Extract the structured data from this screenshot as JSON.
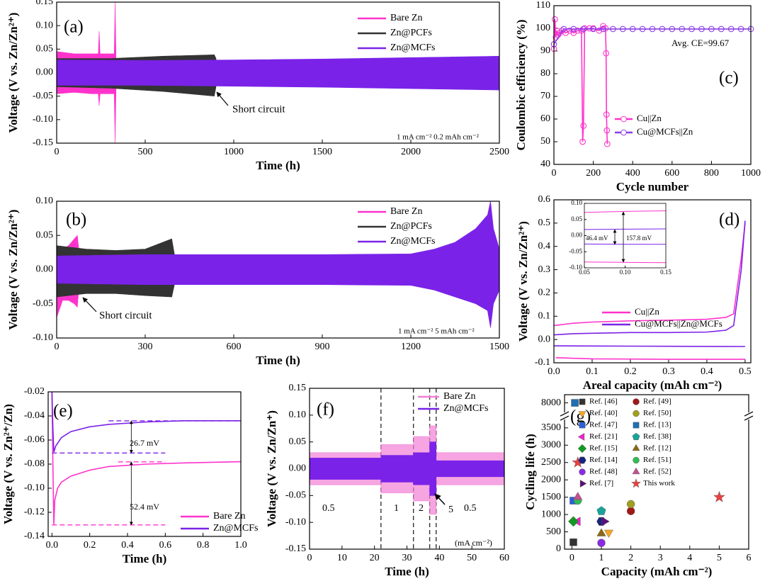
{
  "chart_data": [
    {
      "type": "band",
      "panel_label": "(a)",
      "xlabel": "Time (h)",
      "ylabel": "Voltage (V vs. Zn/Zn²⁺)",
      "xlim": [
        0,
        2500
      ],
      "xticks": [
        0,
        500,
        1000,
        1500,
        2000,
        2500
      ],
      "ylim": [
        -0.15,
        0.15
      ],
      "yticks": [
        -0.15,
        {
          "value": -0.1,
          "label": "-0.10"
        },
        -0.05,
        {
          "value": 0,
          "label": "0.00"
        },
        0.05,
        {
          "value": 0.1,
          "label": "0.10"
        },
        0.15
      ],
      "series": [
        {
          "name": "Bare Zn",
          "color": "#ff33cc",
          "x": [
            0,
            100,
            200,
            235,
            240,
            245,
            300,
            325,
            330,
            335
          ],
          "values": [
            0.045,
            0.04,
            0.04,
            0.04,
            0.088,
            0.04,
            0.04,
            0.04,
            0.15,
            0.04
          ],
          "lower": [
            -0.045,
            -0.042,
            -0.045,
            -0.045,
            -0.07,
            -0.045,
            -0.045,
            -0.045,
            -0.15,
            -0.04
          ]
        },
        {
          "name": "Zn@PCFs",
          "color": "#333333",
          "x": [
            0,
            300,
            600,
            890,
            900
          ],
          "values": [
            0.03,
            0.03,
            0.035,
            0.038,
            0.03
          ],
          "lower": [
            -0.03,
            -0.033,
            -0.04,
            -0.05,
            -0.03
          ]
        },
        {
          "name": "Zn@MCFs",
          "color": "#7a22e8",
          "x": [
            0,
            500,
            1000,
            1500,
            2000,
            2500
          ],
          "values": [
            0.027,
            0.026,
            0.027,
            0.029,
            0.032,
            0.035
          ],
          "lower": [
            -0.027,
            -0.027,
            -0.029,
            -0.031,
            -0.034,
            -0.037
          ]
        }
      ],
      "annotations": [
        "Short circuit",
        "1 mA cm⁻² 0.2 mAh cm⁻²"
      ]
    },
    {
      "type": "band",
      "panel_label": "(b)",
      "xlabel": "Time (h)",
      "ylabel": "Voltage (V vs. Zn/Zn²⁺)",
      "xlim": [
        0,
        1500
      ],
      "xticks": [
        0,
        300,
        600,
        900,
        1200,
        1500
      ],
      "ylim": [
        -0.1,
        0.1
      ],
      "yticks": [
        {
          "value": -0.1,
          "label": "-0.10"
        },
        -0.05,
        {
          "value": 0,
          "label": "0.00"
        },
        0.05,
        {
          "value": 0.1,
          "label": "0.10"
        }
      ],
      "series": [
        {
          "name": "Bare Zn",
          "color": "#ff33cc",
          "x": [
            0,
            20,
            40,
            60,
            70,
            75
          ],
          "values": [
            0.035,
            0.03,
            0.035,
            0.045,
            0.05,
            0.03
          ],
          "lower": [
            -0.07,
            -0.045,
            -0.045,
            -0.05,
            -0.055,
            -0.03
          ]
        },
        {
          "name": "Zn@PCFs",
          "color": "#333333",
          "x": [
            0,
            100,
            200,
            300,
            390,
            400
          ],
          "values": [
            0.035,
            0.03,
            0.028,
            0.03,
            0.045,
            0.02
          ],
          "lower": [
            -0.04,
            -0.035,
            -0.035,
            -0.038,
            -0.04,
            -0.02
          ]
        },
        {
          "name": "Zn@MCFs",
          "color": "#7a22e8",
          "x": [
            0,
            300,
            600,
            900,
            1200,
            1280,
            1350,
            1420,
            1460,
            1470,
            1480,
            1500
          ],
          "values": [
            0.02,
            0.022,
            0.022,
            0.022,
            0.023,
            0.03,
            0.04,
            0.06,
            0.08,
            0.1,
            0.06,
            0.03
          ],
          "lower": [
            -0.02,
            -0.022,
            -0.022,
            -0.022,
            -0.023,
            -0.03,
            -0.04,
            -0.05,
            -0.06,
            -0.085,
            -0.05,
            -0.03
          ]
        }
      ],
      "annotations": [
        "Short circuit",
        "1 mA cm⁻² 5 mAh cm⁻²"
      ]
    },
    {
      "type": "line",
      "panel_label": "(c)",
      "xlabel": "Cycle number",
      "ylabel": "Coulombic efficiency (%)",
      "markers": true,
      "xlim": [
        0,
        1000
      ],
      "xticks": [
        0,
        200,
        400,
        600,
        800,
        1000
      ],
      "ylim": [
        40,
        110
      ],
      "yticks": [
        40,
        50,
        60,
        70,
        80,
        90,
        100,
        110
      ],
      "series": [
        {
          "name": "Cu||Zn",
          "color": "#ff33cc",
          "x": [
            0,
            5,
            10,
            15,
            20,
            30,
            40,
            60,
            80,
            100,
            120,
            140,
            146,
            150,
            156,
            180,
            200,
            230,
            250,
            262,
            265,
            267,
            269,
            271
          ],
          "values": [
            91,
            104,
            96,
            99,
            97,
            98,
            99,
            98,
            99,
            98,
            99,
            99,
            50,
            57,
            100,
            100,
            100,
            99,
            101,
            100,
            89,
            62,
            55,
            49
          ]
        },
        {
          "name": "Cu@MCFs||Zn",
          "color": "#8c3ee8",
          "x": [
            0,
            50,
            100,
            150,
            200,
            250,
            300,
            350,
            400,
            450,
            500,
            550,
            600,
            650,
            700,
            750,
            800,
            850,
            900,
            950,
            1000
          ],
          "values": [
            93,
            99.7,
            99.7,
            99.7,
            99.7,
            99.7,
            99.7,
            99.7,
            99.7,
            99.7,
            99.7,
            99.7,
            99.7,
            99.7,
            99.7,
            99.7,
            99.7,
            99.7,
            99.7,
            99.7,
            99.7
          ]
        }
      ],
      "annotations": [
        "Avg. CE=99.67"
      ]
    },
    {
      "type": "line",
      "panel_label": "(d)",
      "xlabel": "Areal capacity (mAh cm⁻²)",
      "ylabel": "Voltage (V vs. Zn/Zn²⁺)",
      "xlim": [
        0,
        0.515
      ],
      "xticks": [
        {
          "value": 0,
          "label": "0.0"
        },
        0.1,
        0.2,
        0.3,
        0.4,
        0.5
      ],
      "ylim": [
        -0.1,
        0.6
      ],
      "yticks": [
        -0.1,
        {
          "value": 0,
          "label": "0.0"
        },
        0.1,
        0.2,
        0.3,
        0.4,
        0.5,
        0.6
      ],
      "series": [
        {
          "name": "Cu||Zn",
          "color": "#ff33cc",
          "x": [
            0,
            0.05,
            0.1,
            0.2,
            0.3,
            0.4,
            0.45,
            0.47,
            0.49,
            0.5,
            0.5,
            0.005,
            0.1,
            0.3,
            0.5
          ],
          "values": [
            0.06,
            0.07,
            0.075,
            0.08,
            0.083,
            0.087,
            0.095,
            0.11,
            0.35,
            0.5,
            null,
            -0.078,
            -0.083,
            -0.085,
            -0.085
          ]
        },
        {
          "name": "Cu@MCFs||Zn@MCFs",
          "color": "#7a22e8",
          "x": [
            0,
            0.05,
            0.1,
            0.2,
            0.3,
            0.4,
            0.45,
            0.47,
            0.49,
            0.5,
            0.5,
            0,
            0.1,
            0.3,
            0.5
          ],
          "values": [
            0.02,
            0.025,
            0.027,
            0.03,
            0.03,
            0.032,
            0.04,
            0.06,
            0.3,
            0.51,
            null,
            -0.027,
            -0.028,
            -0.029,
            -0.03
          ]
        }
      ]
    },
    {
      "type": "line",
      "xlim": [
        0.05,
        0.15
      ],
      "xticks": [
        0.05,
        {
          "value": 0.1,
          "label": "0.10"
        },
        0.15
      ],
      "ylim": [
        -0.1,
        0.1
      ],
      "yticks": [
        {
          "value": -0.1,
          "label": "-0.10"
        },
        -0.05,
        {
          "value": 0,
          "label": "0.00"
        },
        0.05,
        {
          "value": 0.1,
          "label": "0.10"
        }
      ],
      "series": [
        {
          "color": "#ff33cc",
          "x": [
            0.05,
            0.1,
            0.15,
            0.15,
            0.05,
            0.1,
            0.15
          ],
          "values": [
            0.072,
            0.075,
            0.077,
            null,
            -0.082,
            -0.083,
            -0.084
          ]
        },
        {
          "color": "#7a22e8",
          "x": [
            0.05,
            0.1,
            0.15,
            0.15,
            0.05,
            0.1,
            0.15
          ],
          "values": [
            0.019,
            0.02,
            0.021,
            null,
            -0.026,
            -0.027,
            -0.027
          ]
        }
      ],
      "annotations": [
        "46.4 mV",
        "157.8 mV"
      ]
    },
    {
      "type": "line",
      "panel_label": "(e)",
      "xlabel": "Time (h)",
      "ylabel": "Voltage (V vs. Zn²⁺/Zn)",
      "xlim": [
        -0.02,
        1
      ],
      "xticks": [
        {
          "value": 0,
          "label": "0.0"
        },
        0.2,
        0.4,
        0.6,
        0.8,
        {
          "value": 1,
          "label": "1.0"
        }
      ],
      "ylim": [
        -0.14,
        -0.02
      ],
      "yticks": [
        -0.02,
        -0.04,
        -0.06,
        -0.08,
        {
          "value": -0.1,
          "label": "-0.10"
        },
        -0.12,
        -0.14
      ],
      "series": [
        {
          "name": "Bare Zn",
          "color": "#ff33cc",
          "x": [
            0,
            0.005,
            0.01,
            0.015,
            0.03,
            0.05,
            0.1,
            0.2,
            0.3,
            0.5,
            0.7,
            1.0
          ],
          "values": [
            -0.02,
            -0.08,
            -0.13,
            -0.11,
            -0.1,
            -0.095,
            -0.09,
            -0.085,
            -0.082,
            -0.08,
            -0.079,
            -0.078
          ]
        },
        {
          "name": "Zn@MCFs",
          "color": "#7a22e8",
          "x": [
            0,
            0.005,
            0.01,
            0.02,
            0.05,
            0.1,
            0.2,
            0.3,
            0.5,
            0.7,
            1.0
          ],
          "values": [
            -0.02,
            -0.05,
            -0.07,
            -0.065,
            -0.058,
            -0.053,
            -0.049,
            -0.047,
            -0.045,
            -0.044,
            -0.044
          ]
        }
      ],
      "guides": [
        {
          "value": -0.0441,
          "color": "#7a22e8"
        },
        {
          "value": -0.0708,
          "color": "#7a22e8"
        },
        {
          "value": -0.0781,
          "color": "#ff33cc"
        },
        {
          "value": -0.1305,
          "color": "#ff33cc"
        }
      ],
      "annotations": [
        "26.7 mV",
        "52.4 mV"
      ]
    },
    {
      "type": "band",
      "panel_label": "(f)",
      "xlabel": "Time (h)",
      "ylabel": "Voltage (V vs. Zn/Zn⁺)",
      "xlim": [
        0,
        60
      ],
      "xticks": [
        0,
        10,
        20,
        30,
        40,
        50,
        60
      ],
      "ylim": [
        -0.15,
        0.15
      ],
      "yticks": [
        -0.15,
        {
          "value": -0.1,
          "label": "-0.10"
        },
        -0.05,
        {
          "value": 0,
          "label": "0.00"
        },
        0.05,
        {
          "value": 0.1,
          "label": "0.10"
        },
        0.15
      ],
      "series": [
        {
          "name": "Bare Zn",
          "color": "#f27fd6",
          "x": [
            0,
            22,
            22,
            32,
            32,
            37,
            37,
            39,
            39,
            60
          ],
          "values": [
            0.03,
            0.03,
            0.045,
            0.045,
            0.06,
            0.06,
            0.08,
            0.08,
            0.03,
            0.03
          ],
          "lower": [
            -0.03,
            -0.03,
            -0.045,
            -0.045,
            -0.06,
            -0.06,
            -0.085,
            -0.085,
            -0.03,
            -0.03
          ]
        },
        {
          "name": "Zn@MCFs",
          "color": "#7a22e8",
          "x": [
            0,
            22,
            22,
            32,
            32,
            37,
            37,
            39,
            39,
            60
          ],
          "values": [
            0.02,
            0.02,
            0.025,
            0.025,
            0.03,
            0.03,
            0.05,
            0.05,
            0.015,
            0.015
          ],
          "lower": [
            -0.02,
            -0.02,
            -0.025,
            -0.025,
            -0.03,
            -0.03,
            -0.05,
            -0.05,
            -0.015,
            -0.015
          ]
        }
      ],
      "dividers": [
        22,
        32,
        37,
        39
      ],
      "annotations": [
        "0.5",
        "1",
        "2",
        "5",
        "0.5",
        "(mA cm⁻²)"
      ]
    },
    {
      "type": "scatter",
      "panel_label": "(g)",
      "xlabel": "Capacity (mAh cm⁻²)",
      "ylabel": "Cycling life (h)",
      "xlim": [
        -0.25,
        6
      ],
      "xticks": [
        0,
        1,
        2,
        3,
        4,
        5,
        6
      ],
      "ylim": [
        0,
        8200
      ],
      "ybreak": [
        3700,
        7800
      ],
      "yticks": [
        0,
        500,
        1000,
        1500,
        2000,
        2500,
        3000,
        3500,
        8000
      ],
      "series": [
        {
          "name": "Ref. [46]",
          "color": "#333333",
          "marker": "square",
          "x": [
            0.05
          ],
          "values": [
            200
          ]
        },
        {
          "name": "Ref. [40]",
          "color": "#f5a623",
          "marker": "triangle-down",
          "x": [
            1.25
          ],
          "values": [
            480
          ]
        },
        {
          "name": "Ref. [47]",
          "color": "#2b5fd9",
          "marker": "square",
          "x": [
            0.05
          ],
          "values": [
            1400
          ]
        },
        {
          "name": "Ref. [21]",
          "color": "#ee22cc",
          "marker": "triangle-left",
          "x": [
            0.2
          ],
          "values": [
            800
          ]
        },
        {
          "name": "Ref. [15]",
          "color": "#119922",
          "marker": "diamond",
          "x": [
            0.05
          ],
          "values": [
            800
          ]
        },
        {
          "name": "Ref. [14]",
          "color": "#1a237e",
          "marker": "hexagon",
          "x": [
            1.0
          ],
          "values": [
            800
          ]
        },
        {
          "name": "Ref. [48]",
          "color": "#8a2be2",
          "marker": "circle",
          "x": [
            1.0
          ],
          "values": [
            180
          ]
        },
        {
          "name": "Ref. [7]",
          "color": "#5b0f7a",
          "marker": "triangle-right",
          "x": [
            1.1
          ],
          "values": [
            800
          ]
        },
        {
          "name": "Ref. [49]",
          "color": "#a01818",
          "marker": "circle",
          "x": [
            2.0
          ],
          "values": [
            1100
          ]
        },
        {
          "name": "Ref. [50]",
          "color": "#a0a020",
          "marker": "circle",
          "x": [
            2.0
          ],
          "values": [
            1300
          ]
        },
        {
          "name": "Ref. [13]",
          "color": "#1f6fb2",
          "marker": "square",
          "x": [
            0.1
          ],
          "values": [
            8000
          ]
        },
        {
          "name": "Ref. [38]",
          "color": "#1aa39a",
          "marker": "pentagon",
          "x": [
            1.0
          ],
          "values": [
            1100
          ]
        },
        {
          "name": "Ref. [12]",
          "color": "#8b6914",
          "marker": "triangle",
          "x": [
            1.0
          ],
          "values": [
            450
          ]
        },
        {
          "name": "Ref. [51]",
          "color": "#33bb55",
          "marker": "circle",
          "x": [
            0.2
          ],
          "values": [
            1400
          ]
        },
        {
          "name": "Ref. [52]",
          "color": "#c2508f",
          "marker": "triangle",
          "x": [
            0.2
          ],
          "values": [
            1500
          ]
        },
        {
          "name": "This work",
          "color": "#e84040",
          "marker": "star",
          "x": [
            0.2,
            5
          ],
          "values": [
            2500,
            1500
          ]
        }
      ]
    }
  ]
}
